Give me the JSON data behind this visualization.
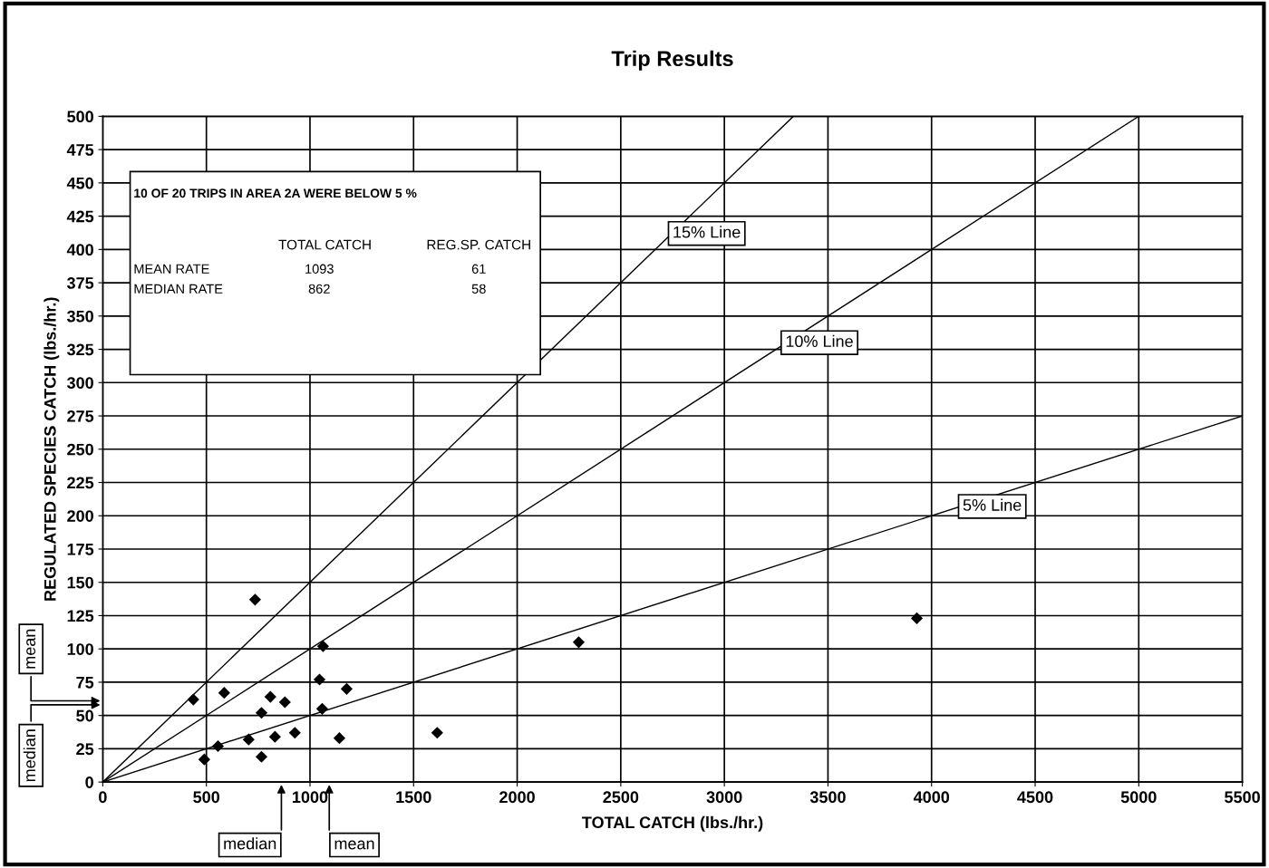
{
  "chart_data": {
    "type": "scatter",
    "title": "Trip Results",
    "xlabel": "TOTAL CATCH (lbs./hr.)",
    "ylabel": "REGULATED SPECIES CATCH (lbs./hr.)",
    "xlim": [
      0,
      5500
    ],
    "ylim": [
      0,
      500
    ],
    "xticks": [
      0,
      500,
      1000,
      1500,
      2000,
      2500,
      3000,
      3500,
      4000,
      4500,
      5000,
      5500
    ],
    "yticks": [
      0,
      25,
      50,
      75,
      100,
      125,
      150,
      175,
      200,
      225,
      250,
      275,
      300,
      325,
      350,
      375,
      400,
      425,
      450,
      475,
      500
    ],
    "grid": true,
    "legend": false,
    "marker": "diamond",
    "series": [
      {
        "color": "#000000",
        "x": [
          437,
          490,
          586,
          556,
          704,
          735,
          766,
          766,
          809,
          831,
          879,
          927,
          1046,
          1063,
          1059,
          1142,
          1177,
          1614,
          2297,
          3929
        ],
        "values": [
          62,
          17,
          67,
          27,
          32,
          137,
          52,
          19,
          64,
          34,
          60,
          37,
          77,
          102,
          55,
          33,
          70,
          37,
          105,
          123
        ]
      },
      {
        "type": "line",
        "color": "#000000",
        "marker": "none",
        "x": [
          0,
          3333
        ],
        "values": [
          0,
          500
        ]
      },
      {
        "type": "line",
        "color": "#000000",
        "marker": "none",
        "x": [
          0,
          5000
        ],
        "values": [
          0,
          500
        ]
      },
      {
        "type": "line",
        "color": "#000000",
        "marker": "none",
        "x": [
          0,
          5500
        ],
        "values": [
          0,
          275
        ]
      }
    ],
    "annotations": [
      "10 OF 20 TRIPS IN AREA 2A WERE BELOW 5 %",
      "TOTAL CATCH",
      "REG.SP. CATCH",
      "MEAN RATE",
      "1093",
      "61",
      "MEDIAN RATE",
      "862",
      "58",
      {
        "text": "15% Line",
        "x": 2750,
        "y": 412
      },
      {
        "text": "10% Line",
        "x": 3294,
        "y": 330
      },
      {
        "text": "5% Line",
        "x": 4150,
        "y": 207
      },
      "median",
      "mean",
      "mean",
      "median"
    ]
  }
}
